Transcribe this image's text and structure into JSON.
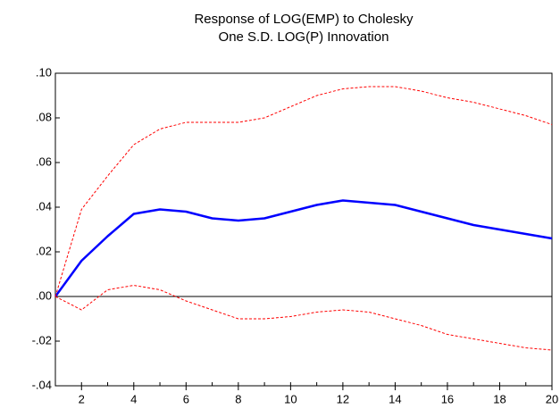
{
  "chart_data": {
    "type": "line",
    "title": "Response of LOG(EMP) to Cholesky",
    "subtitle": "One S.D. LOG(P) Innovation",
    "x": [
      1,
      2,
      3,
      4,
      5,
      6,
      7,
      8,
      9,
      10,
      11,
      12,
      13,
      14,
      15,
      16,
      17,
      18,
      19,
      20
    ],
    "series": [
      {
        "color": "#0000ff",
        "style": "solid",
        "values": [
          0.0,
          0.016,
          0.027,
          0.037,
          0.039,
          0.038,
          0.035,
          0.034,
          0.035,
          0.038,
          0.041,
          0.043,
          0.042,
          0.041,
          0.038,
          0.035,
          0.032,
          0.03,
          0.028,
          0.026
        ]
      },
      {
        "color": "#ff0000",
        "style": "dashed",
        "values": [
          0.0,
          0.039,
          0.054,
          0.068,
          0.075,
          0.078,
          0.078,
          0.078,
          0.08,
          0.085,
          0.09,
          0.093,
          0.094,
          0.094,
          0.092,
          0.089,
          0.087,
          0.084,
          0.081,
          0.077
        ]
      },
      {
        "color": "#ff0000",
        "style": "dashed",
        "values": [
          0.0,
          -0.006,
          0.003,
          0.005,
          0.003,
          -0.002,
          -0.006,
          -0.01,
          -0.01,
          -0.009,
          -0.007,
          -0.006,
          -0.007,
          -0.01,
          -0.013,
          -0.017,
          -0.019,
          -0.021,
          -0.023,
          -0.024
        ]
      }
    ],
    "xlim": [
      1,
      20
    ],
    "xticks": [
      2,
      4,
      6,
      8,
      10,
      12,
      14,
      16,
      18,
      20
    ],
    "ylim": [
      -0.04,
      0.1
    ],
    "yticks": [
      {
        "value": -0.04,
        "label": "-.04"
      },
      {
        "value": -0.02,
        "label": "-.02"
      },
      {
        "value": 0,
        "label": ".00"
      },
      {
        "value": 0.02,
        "label": ".02"
      },
      {
        "value": 0.04,
        "label": ".04"
      },
      {
        "value": 0.06,
        "label": ".06"
      },
      {
        "value": 0.08,
        "label": ".08"
      },
      {
        "value": 0.1,
        "label": ".10"
      }
    ],
    "grid": false
  }
}
